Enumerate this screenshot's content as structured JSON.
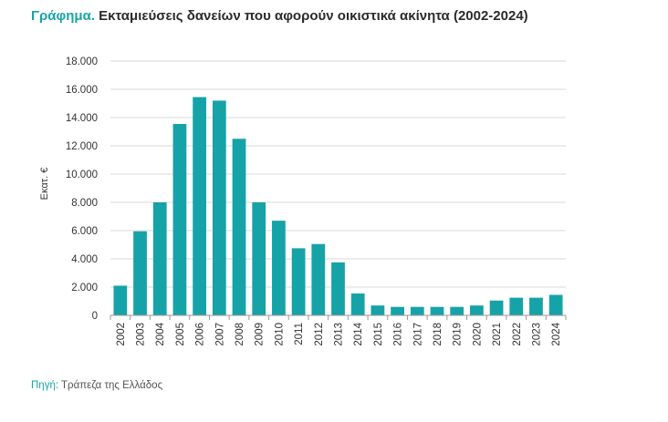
{
  "header": {
    "prefix": "Γράφημα",
    "dot": ".",
    "title": " Εκταμιεύσεις δανείων που αφορούν οικιστικά ακίνητα (2002-2024)"
  },
  "source": {
    "prefix": "Πηγή:",
    "text": " Τράπεζα της Ελλάδος"
  },
  "colors": {
    "accent": "#1aa3a8",
    "bar": "#16a3a8",
    "grid": "#d9d9d9",
    "axis": "#999999"
  },
  "chart_data": {
    "type": "bar",
    "title": "Εκταμιεύσεις δανείων που αφορούν οικιστικά ακίνητα (2002-2024)",
    "xlabel": "",
    "ylabel": "Εκατ. €",
    "ylim": [
      0,
      18000
    ],
    "yticks": [
      0,
      2000,
      4000,
      6000,
      8000,
      10000,
      12000,
      14000,
      16000,
      18000
    ],
    "ytick_labels": [
      "0",
      "2.000",
      "4.000",
      "6.000",
      "8.000",
      "10.000",
      "12.000",
      "14.000",
      "16.000",
      "18.000"
    ],
    "grid": true,
    "categories": [
      "2002",
      "2003",
      "2004",
      "2005",
      "2006",
      "2007",
      "2008",
      "2009",
      "2010",
      "2011",
      "2012",
      "2013",
      "2014",
      "2015",
      "2016",
      "2017",
      "2018",
      "2019",
      "2020",
      "2021",
      "2022",
      "2023",
      "2024"
    ],
    "values": [
      2100,
      5950,
      8000,
      13550,
      15450,
      15200,
      12500,
      8000,
      6700,
      4750,
      5050,
      3750,
      1550,
      700,
      600,
      600,
      600,
      600,
      700,
      1050,
      1250,
      1250,
      1450
    ]
  }
}
